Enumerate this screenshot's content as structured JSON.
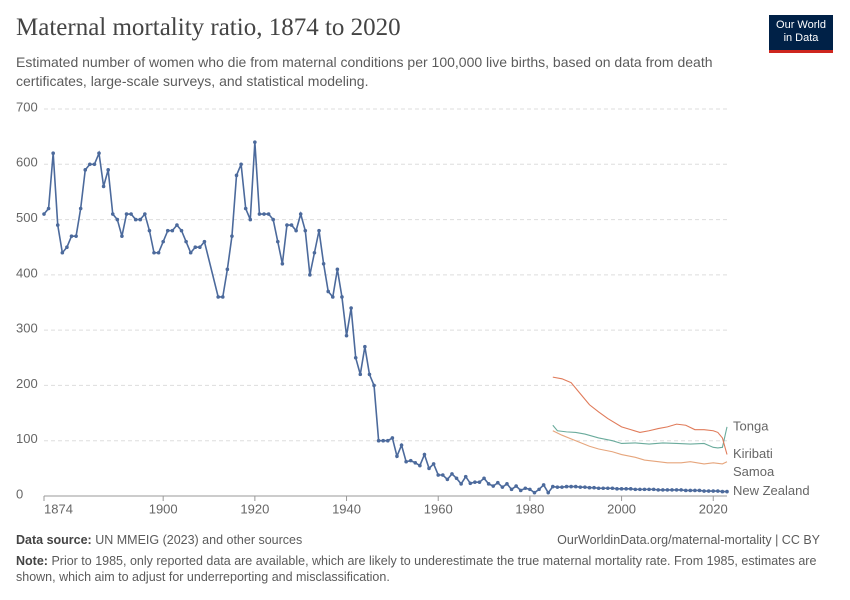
{
  "chart_data": {
    "type": "line",
    "title": "Maternal mortality ratio, 1874 to 2020",
    "subtitle": "Estimated number of women who die from maternal conditions per 100,000 live births, based on data from death certificates, large-scale surveys, and statistical modeling.",
    "logo": [
      "Our World",
      "in Data"
    ],
    "source_label": "Data source:",
    "source_text": "UN MMEIG (2023) and other sources",
    "url": "OurWorldinData.org/maternal-mortality | CC BY",
    "note_label": "Note:",
    "note_text": "Prior to 1985, only reported data are available, which are likely to underestimate the true maternal mortality rate. From 1985, estimates are shown, which aim to adjust for underreporting and misclassification.",
    "xlim": [
      1874,
      2023
    ],
    "xticks": [
      1874,
      1900,
      1920,
      1940,
      1960,
      1980,
      2000,
      2020
    ],
    "ylim": [
      0,
      700
    ],
    "yticks": [
      0,
      100,
      200,
      300,
      400,
      500,
      600,
      700
    ],
    "grid": true,
    "series": [
      {
        "name": "New Zealand",
        "color": "#4c6a9c",
        "markers": true,
        "x": [
          1874,
          1875,
          1876,
          1877,
          1878,
          1879,
          1880,
          1881,
          1882,
          1883,
          1884,
          1885,
          1886,
          1887,
          1888,
          1889,
          1890,
          1891,
          1892,
          1893,
          1894,
          1895,
          1896,
          1897,
          1898,
          1899,
          1900,
          1901,
          1902,
          1903,
          1904,
          1905,
          1906,
          1907,
          1908,
          1909,
          1912,
          1913,
          1914,
          1915,
          1916,
          1917,
          1918,
          1919,
          1920,
          1921,
          1922,
          1923,
          1924,
          1925,
          1926,
          1927,
          1928,
          1929,
          1930,
          1931,
          1932,
          1933,
          1934,
          1935,
          1936,
          1937,
          1938,
          1939,
          1940,
          1941,
          1942,
          1943,
          1944,
          1945,
          1946,
          1947,
          1948,
          1949,
          1950,
          1951,
          1952,
          1953,
          1954,
          1955,
          1956,
          1957,
          1958,
          1959,
          1960,
          1961,
          1962,
          1963,
          1964,
          1965,
          1966,
          1967,
          1968,
          1969,
          1970,
          1971,
          1972,
          1973,
          1974,
          1975,
          1976,
          1977,
          1978,
          1979,
          1980,
          1981,
          1982,
          1983,
          1984,
          1985,
          1986,
          1987,
          1988,
          1989,
          1990,
          1991,
          1992,
          1993,
          1994,
          1995,
          1996,
          1997,
          1998,
          1999,
          2000,
          2001,
          2002,
          2003,
          2004,
          2005,
          2006,
          2007,
          2008,
          2009,
          2010,
          2011,
          2012,
          2013,
          2014,
          2015,
          2016,
          2017,
          2018,
          2019,
          2020,
          2021,
          2022,
          2023
        ],
        "values": [
          510,
          520,
          620,
          490,
          440,
          450,
          470,
          470,
          520,
          590,
          600,
          600,
          620,
          560,
          590,
          510,
          500,
          470,
          510,
          510,
          500,
          500,
          510,
          480,
          440,
          440,
          460,
          480,
          480,
          490,
          480,
          460,
          440,
          450,
          450,
          460,
          360,
          360,
          410,
          470,
          580,
          600,
          520,
          500,
          640,
          510,
          510,
          510,
          500,
          460,
          420,
          490,
          490,
          480,
          510,
          480,
          400,
          440,
          480,
          420,
          370,
          360,
          410,
          360,
          290,
          340,
          250,
          220,
          270,
          220,
          200,
          100,
          100,
          100,
          105,
          72,
          92,
          62,
          64,
          60,
          55,
          75,
          50,
          58,
          38,
          38,
          30,
          40,
          32,
          22,
          35,
          23,
          25,
          25,
          32,
          22,
          18,
          24,
          16,
          22,
          12,
          18,
          10,
          14,
          12,
          6,
          12,
          20,
          6,
          17,
          16,
          16,
          17,
          17,
          17,
          16,
          16,
          15,
          15,
          14,
          14,
          14,
          14,
          13,
          13,
          13,
          13,
          12,
          12,
          12,
          12,
          12,
          11,
          11,
          11,
          11,
          11,
          11,
          10,
          10,
          10,
          10,
          9,
          9,
          9,
          9,
          8,
          8
        ]
      },
      {
        "name": "Tonga",
        "color": "#6aab9c",
        "markers": false,
        "x": [
          1985,
          1986,
          1988,
          1990,
          1992,
          1995,
          1998,
          2000,
          2003,
          2006,
          2009,
          2012,
          2015,
          2018,
          2020,
          2021,
          2022,
          2023
        ],
        "values": [
          128,
          118,
          116,
          115,
          112,
          105,
          100,
          95,
          96,
          94,
          96,
          95,
          94,
          95,
          88,
          87,
          88,
          125
        ]
      },
      {
        "name": "Kiribati",
        "color": "#e07b5a",
        "markers": false,
        "x": [
          1985,
          1987,
          1989,
          1991,
          1993,
          1995,
          1997,
          2000,
          2002,
          2004,
          2006,
          2008,
          2010,
          2012,
          2014,
          2016,
          2018,
          2020,
          2021,
          2022,
          2023
        ],
        "values": [
          215,
          212,
          205,
          185,
          165,
          152,
          140,
          125,
          120,
          115,
          118,
          122,
          125,
          130,
          128,
          120,
          120,
          118,
          115,
          105,
          75
        ]
      },
      {
        "name": "Samoa",
        "color": "#e6a57c",
        "markers": false,
        "x": [
          1985,
          1987,
          1990,
          1993,
          1995,
          1998,
          2000,
          2003,
          2005,
          2008,
          2010,
          2013,
          2015,
          2018,
          2020,
          2022,
          2023
        ],
        "values": [
          118,
          110,
          100,
          90,
          85,
          80,
          75,
          70,
          65,
          62,
          60,
          60,
          62,
          58,
          60,
          58,
          62
        ]
      }
    ]
  }
}
